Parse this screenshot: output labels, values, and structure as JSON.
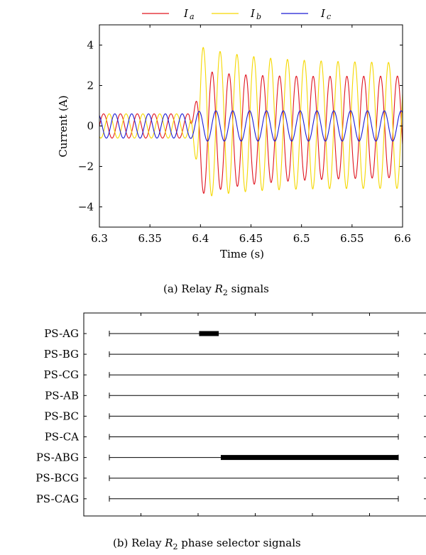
{
  "chart_data": [
    {
      "type": "line",
      "caption": "(a) Relay R2 signals",
      "xlabel": "Time (s)",
      "ylabel": "Current (A)",
      "xlim": [
        6.3,
        6.6
      ],
      "ylim": [
        -5,
        5
      ],
      "x_ticks": [
        "6.3",
        "6.35",
        "6.4",
        "6.45",
        "6.5",
        "6.55",
        "6.6"
      ],
      "y_ticks": [
        "−4",
        "−2",
        "0",
        "2",
        "4"
      ],
      "legend_position": "top",
      "frequency_hz": 60,
      "fault_time_s": 6.389,
      "series": [
        {
          "name": "Ia",
          "color": "#e0141e",
          "prefault_amplitude": 0.6,
          "phase_deg": 0,
          "postfault_peak_amplitude": 3.2,
          "postfault_steady_amplitude": 2.5,
          "postfault_dc_offset": -0.35,
          "postfault_phase_deg": 200
        },
        {
          "name": "Ib",
          "color": "#f5d800",
          "prefault_amplitude": 0.6,
          "phase_deg": -120,
          "postfault_peak_amplitude": 3.9,
          "postfault_steady_amplitude": 3.1,
          "postfault_dc_offset": 0.2,
          "postfault_phase_deg": 30
        },
        {
          "name": "Ic",
          "color": "#1a1ad4",
          "prefault_amplitude": 0.6,
          "phase_deg": 120,
          "postfault_peak_amplitude": 0.75,
          "postfault_steady_amplitude": 0.75,
          "postfault_dc_offset": 0.0,
          "postfault_phase_deg": 120
        }
      ]
    },
    {
      "type": "timeline",
      "caption": "(b) Relay R2 phase selector signals",
      "xlim": [
        6.3,
        6.6
      ],
      "signal_span": [
        6.31,
        6.59
      ],
      "signals": [
        {
          "name": "PS-AG",
          "active": [
            [
              6.397,
              6.416
            ]
          ]
        },
        {
          "name": "PS-BG",
          "active": []
        },
        {
          "name": "PS-CG",
          "active": []
        },
        {
          "name": "PS-AB",
          "active": []
        },
        {
          "name": "PS-BC",
          "active": []
        },
        {
          "name": "PS-CA",
          "active": []
        },
        {
          "name": "PS-ABG",
          "active": [
            [
              6.418,
              6.59
            ]
          ]
        },
        {
          "name": "PS-BCG",
          "active": []
        },
        {
          "name": "PS-CAG",
          "active": []
        }
      ]
    }
  ]
}
